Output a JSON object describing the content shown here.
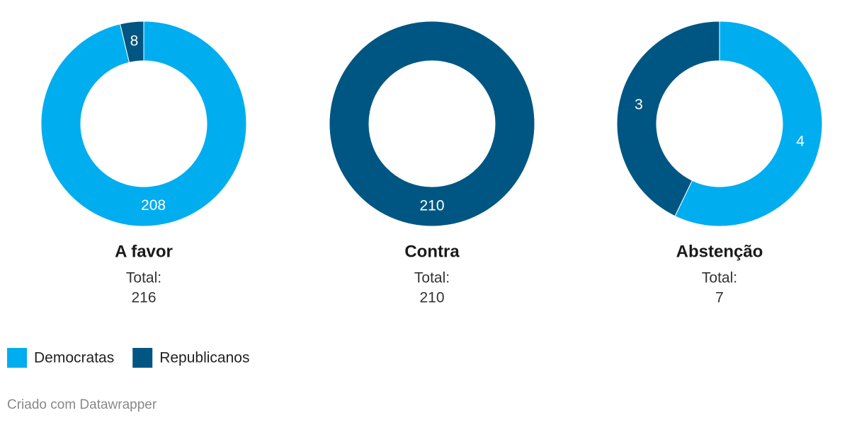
{
  "chart_data": [
    {
      "type": "pie",
      "donut": true,
      "title": "A favor",
      "values": [
        208,
        8
      ],
      "total_label": "Total:",
      "total": 216
    },
    {
      "type": "pie",
      "donut": true,
      "title": "Contra",
      "values": [
        0,
        210
      ],
      "total_label": "Total:",
      "total": 210
    },
    {
      "type": "pie",
      "donut": true,
      "title": "Abstenção",
      "values": [
        4,
        3
      ],
      "total_label": "Total:",
      "total": 7
    }
  ],
  "legend": {
    "items": [
      {
        "name": "Democratas",
        "color": "#00adef"
      },
      {
        "name": "Republicanos",
        "color": "#005682"
      }
    ]
  },
  "footer": "Criado com Datawrapper"
}
